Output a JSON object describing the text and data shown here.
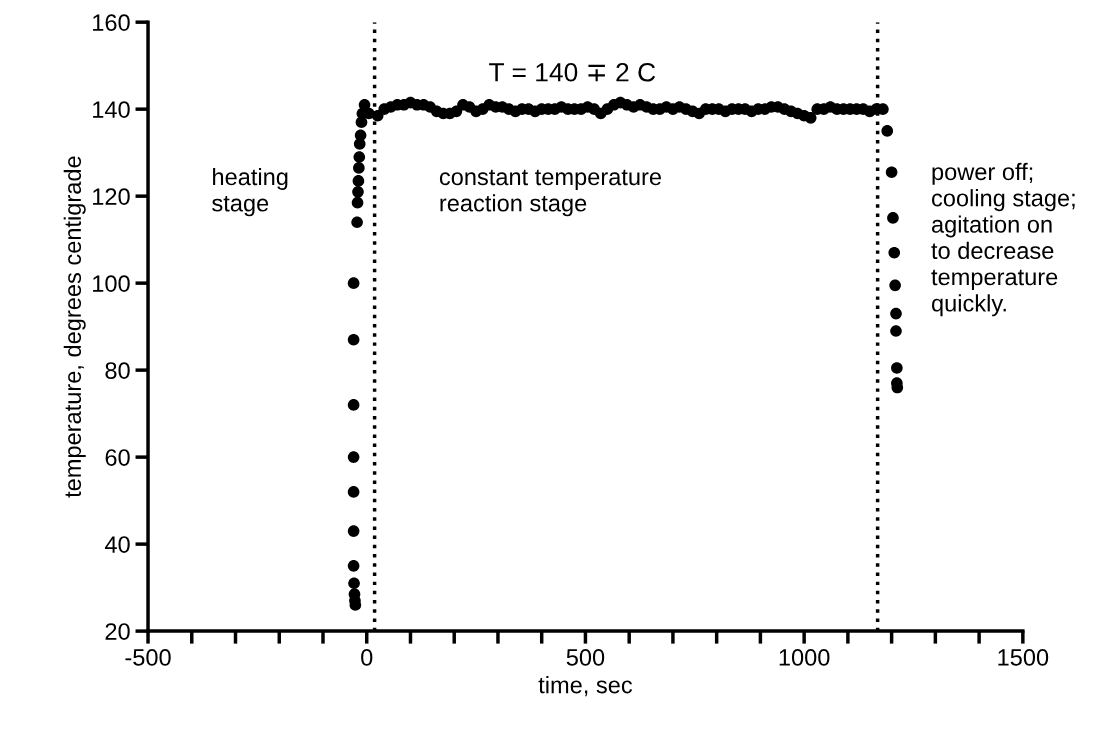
{
  "chart_data": {
    "type": "scatter",
    "xlabel": "time, sec",
    "ylabel": "temperature, degrees centigrade",
    "series": [
      {
        "color": "#000000",
        "x": [
          -30,
          -30,
          -30,
          -30,
          -30,
          -30,
          -30,
          -29,
          -28,
          -27,
          -26,
          -22,
          -21,
          -20,
          -19,
          -18,
          -17,
          -16,
          -14,
          -12,
          -10,
          -5,
          5,
          25,
          40,
          55,
          70,
          85,
          100,
          115,
          130,
          145,
          160,
          175,
          190,
          205,
          220,
          235,
          250,
          265,
          280,
          295,
          310,
          325,
          340,
          355,
          370,
          385,
          400,
          415,
          430,
          445,
          460,
          475,
          490,
          505,
          520,
          535,
          550,
          565,
          580,
          595,
          610,
          625,
          640,
          655,
          670,
          685,
          700,
          715,
          730,
          745,
          760,
          775,
          790,
          805,
          820,
          835,
          850,
          865,
          880,
          895,
          910,
          925,
          940,
          955,
          970,
          985,
          1000,
          1015,
          1030,
          1045,
          1060,
          1075,
          1090,
          1105,
          1120,
          1135,
          1150,
          1165,
          1180,
          1190,
          1200,
          1203,
          1206,
          1208,
          1210,
          1210,
          1212,
          1212,
          1213
        ],
        "values": [
          100,
          87,
          72,
          60,
          52,
          43,
          35,
          31,
          28.5,
          27,
          26,
          114,
          118.5,
          121,
          123.5,
          126.5,
          129,
          132,
          134,
          137,
          139,
          141,
          139,
          138.5,
          140,
          140.5,
          141,
          141,
          141.5,
          141,
          141,
          140.5,
          139.5,
          139,
          139,
          139.5,
          141,
          140.5,
          139.5,
          140,
          141,
          140.5,
          140.5,
          140,
          139.5,
          140,
          140,
          139.5,
          140,
          140,
          140,
          140.5,
          140,
          140,
          140,
          140.5,
          140,
          139,
          140,
          141,
          141.5,
          141,
          140.5,
          141,
          140.5,
          140,
          140,
          140.5,
          140,
          140.5,
          140,
          139.5,
          139,
          140,
          140,
          140,
          139.5,
          140,
          140,
          140,
          139.5,
          140,
          140,
          140.5,
          140.5,
          140,
          139.5,
          139,
          138.5,
          138,
          140,
          140,
          140.5,
          140,
          140,
          140,
          140,
          140,
          139.5,
          140,
          140,
          135,
          125.5,
          115,
          107,
          99.5,
          93,
          89,
          80.5,
          77,
          76
        ]
      }
    ],
    "xlim": [
      -500,
      1500
    ],
    "ylim": [
      20,
      160
    ],
    "xticks": [
      -500,
      {
        "value": -400,
        "label": null
      },
      {
        "value": -300,
        "label": null
      },
      {
        "value": -200,
        "label": null
      },
      {
        "value": -100,
        "label": null
      },
      0,
      {
        "value": 100,
        "label": null
      },
      {
        "value": 200,
        "label": null
      },
      {
        "value": 300,
        "label": null
      },
      {
        "value": 400,
        "label": null
      },
      500,
      {
        "value": 600,
        "label": null
      },
      {
        "value": 700,
        "label": null
      },
      {
        "value": 800,
        "label": null
      },
      {
        "value": 900,
        "label": null
      },
      1000,
      {
        "value": 1100,
        "label": null
      },
      {
        "value": 1200,
        "label": null
      },
      {
        "value": 1300,
        "label": null
      },
      {
        "value": 1400,
        "label": null
      },
      1500
    ],
    "yticks": [
      20,
      40,
      60,
      80,
      100,
      120,
      140,
      160
    ],
    "marker": "circle",
    "grid": false,
    "legend": false,
    "ref_lines": [
      {
        "axis": "x",
        "value": 18,
        "line_style": "dotted",
        "color": "#000000"
      },
      {
        "axis": "x",
        "value": 1168,
        "line_style": "dotted",
        "color": "#000000"
      }
    ],
    "annotations": [
      "T = 140 ∓ 2 C",
      "heating\nstage",
      "constant temperature\nreaction stage",
      "power off;\ncooling stage;\nagitation on\nto decrease\ntemperature\nquickly."
    ]
  }
}
